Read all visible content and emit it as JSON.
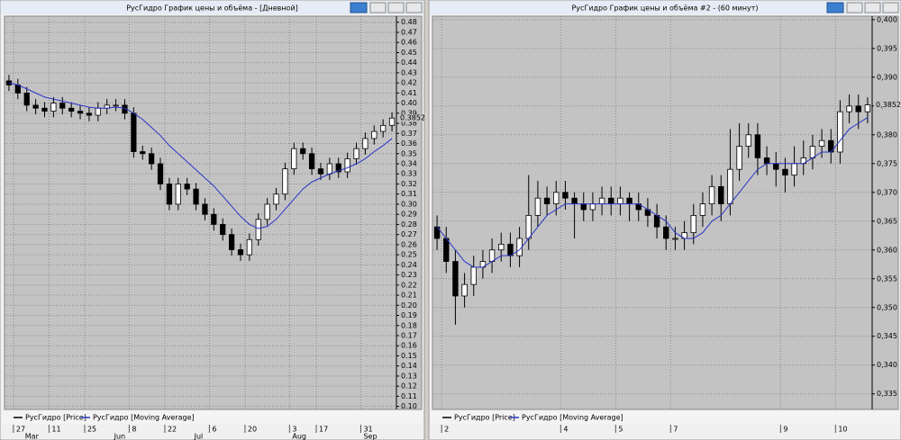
{
  "chart_data": [
    {
      "type": "candlestick",
      "title": "РусГидро График цены и объёма - [Дневной]",
      "categories": [
        null,
        "27",
        null,
        null,
        null,
        "11",
        null,
        null,
        null,
        "25",
        null,
        null,
        null,
        null,
        "8",
        null,
        null,
        null,
        "22",
        null,
        null,
        null,
        null,
        "6",
        null,
        null,
        null,
        "20",
        null,
        null,
        null,
        null,
        "3",
        null,
        null,
        "17",
        null,
        null,
        null,
        null,
        "31",
        null,
        null,
        null
      ],
      "category_months": [
        null,
        null,
        "Mar",
        null,
        null,
        null,
        null,
        null,
        null,
        null,
        null,
        null,
        "Jun",
        null,
        null,
        null,
        null,
        null,
        null,
        null,
        null,
        "Jul",
        null,
        null,
        null,
        null,
        null,
        null,
        null,
        null,
        null,
        null,
        "Aug",
        null,
        null,
        null,
        null,
        null,
        null,
        null,
        "Sep",
        null,
        null,
        null
      ],
      "series": [
        {
          "name": "РусГидро [Price]",
          "color": "#000000",
          "ohlc": [
            [
              0.422,
              0.428,
              0.412,
              0.418
            ],
            [
              0.418,
              0.424,
              0.404,
              0.41
            ],
            [
              0.41,
              0.416,
              0.392,
              0.398
            ],
            [
              0.398,
              0.404,
              0.389,
              0.395
            ],
            [
              0.395,
              0.401,
              0.386,
              0.392
            ],
            [
              0.392,
              0.406,
              0.386,
              0.4
            ],
            [
              0.4,
              0.406,
              0.389,
              0.395
            ],
            [
              0.395,
              0.401,
              0.386,
              0.392
            ],
            [
              0.392,
              0.398,
              0.384,
              0.39
            ],
            [
              0.39,
              0.396,
              0.382,
              0.388
            ],
            [
              0.388,
              0.401,
              0.382,
              0.395
            ],
            [
              0.395,
              0.404,
              0.389,
              0.398
            ],
            [
              0.398,
              0.404,
              0.392,
              0.398
            ],
            [
              0.398,
              0.404,
              0.384,
              0.39
            ],
            [
              0.39,
              0.396,
              0.346,
              0.352
            ],
            [
              0.352,
              0.358,
              0.344,
              0.35
            ],
            [
              0.35,
              0.356,
              0.334,
              0.34
            ],
            [
              0.34,
              0.346,
              0.314,
              0.32
            ],
            [
              0.32,
              0.326,
              0.294,
              0.3
            ],
            [
              0.3,
              0.326,
              0.294,
              0.32
            ],
            [
              0.32,
              0.326,
              0.309,
              0.315
            ],
            [
              0.315,
              0.321,
              0.294,
              0.3
            ],
            [
              0.3,
              0.306,
              0.284,
              0.29
            ],
            [
              0.29,
              0.296,
              0.274,
              0.28
            ],
            [
              0.28,
              0.286,
              0.264,
              0.27
            ],
            [
              0.27,
              0.276,
              0.249,
              0.255
            ],
            [
              0.255,
              0.261,
              0.244,
              0.25
            ],
            [
              0.25,
              0.271,
              0.244,
              0.265
            ],
            [
              0.265,
              0.291,
              0.259,
              0.285
            ],
            [
              0.285,
              0.306,
              0.279,
              0.3
            ],
            [
              0.3,
              0.316,
              0.294,
              0.31
            ],
            [
              0.31,
              0.341,
              0.304,
              0.335
            ],
            [
              0.335,
              0.361,
              0.329,
              0.355
            ],
            [
              0.355,
              0.361,
              0.344,
              0.35
            ],
            [
              0.35,
              0.356,
              0.329,
              0.335
            ],
            [
              0.335,
              0.341,
              0.324,
              0.33
            ],
            [
              0.33,
              0.346,
              0.324,
              0.34
            ],
            [
              0.34,
              0.346,
              0.326,
              0.332
            ],
            [
              0.332,
              0.351,
              0.326,
              0.345
            ],
            [
              0.345,
              0.361,
              0.339,
              0.355
            ],
            [
              0.355,
              0.371,
              0.349,
              0.365
            ],
            [
              0.365,
              0.378,
              0.359,
              0.372
            ],
            [
              0.372,
              0.384,
              0.366,
              0.378
            ],
            [
              0.378,
              0.391,
              0.372,
              0.3852
            ]
          ]
        },
        {
          "name": "РусГидро [Moving Average]",
          "color": "#2a35c8",
          "values": [
            0.42,
            0.418,
            0.414,
            0.41,
            0.406,
            0.404,
            0.402,
            0.4,
            0.398,
            0.396,
            0.395,
            0.395,
            0.396,
            0.395,
            0.39,
            0.384,
            0.376,
            0.368,
            0.358,
            0.35,
            0.342,
            0.334,
            0.326,
            0.318,
            0.308,
            0.298,
            0.288,
            0.28,
            0.276,
            0.278,
            0.285,
            0.295,
            0.305,
            0.315,
            0.322,
            0.326,
            0.33,
            0.333,
            0.336,
            0.34,
            0.345,
            0.352,
            0.358,
            0.365
          ]
        }
      ],
      "ylim": [
        0.097,
        0.486
      ],
      "yticks": [
        {
          "value": 0.1,
          "label": "0.10"
        },
        {
          "value": 0.11,
          "label": "0.11"
        },
        {
          "value": 0.12,
          "label": "0.12"
        },
        {
          "value": 0.13,
          "label": "0.13"
        },
        {
          "value": 0.14,
          "label": "0.14"
        },
        {
          "value": 0.15,
          "label": "0.15"
        },
        {
          "value": 0.16,
          "label": "0.16"
        },
        {
          "value": 0.17,
          "label": "0.17"
        },
        {
          "value": 0.18,
          "label": "0.18"
        },
        {
          "value": 0.19,
          "label": "0.19"
        },
        {
          "value": 0.2,
          "label": "0.20"
        },
        {
          "value": 0.21,
          "label": "0.21"
        },
        {
          "value": 0.22,
          "label": "0.22"
        },
        {
          "value": 0.23,
          "label": "0.23"
        },
        {
          "value": 0.24,
          "label": "0.24"
        },
        {
          "value": 0.25,
          "label": "0.25"
        },
        {
          "value": 0.26,
          "label": "0.26"
        },
        {
          "value": 0.27,
          "label": "0.27"
        },
        {
          "value": 0.28,
          "label": "0.28"
        },
        {
          "value": 0.29,
          "label": "0.29"
        },
        {
          "value": 0.3,
          "label": "0.30"
        },
        {
          "value": 0.31,
          "label": "0.31"
        },
        {
          "value": 0.32,
          "label": "0.32"
        },
        {
          "value": 0.33,
          "label": "0.33"
        },
        {
          "value": 0.34,
          "label": "0.34"
        },
        {
          "value": 0.35,
          "label": "0.35"
        },
        {
          "value": 0.36,
          "label": "0.36"
        },
        {
          "value": 0.37,
          "label": "0.37"
        },
        {
          "value": 0.38,
          "label": "0.38"
        },
        {
          "value": 0.39,
          "label": "0.39"
        },
        {
          "value": 0.4,
          "label": "0.40"
        },
        {
          "value": 0.41,
          "label": "0.41"
        },
        {
          "value": 0.42,
          "label": "0.42"
        },
        {
          "value": 0.43,
          "label": "0.43"
        },
        {
          "value": 0.44,
          "label": "0.44"
        },
        {
          "value": 0.45,
          "label": "0.45"
        },
        {
          "value": 0.46,
          "label": "0.46"
        },
        {
          "value": 0.47,
          "label": "0.47"
        },
        {
          "value": 0.48,
          "label": "0.48"
        }
      ],
      "last_price": {
        "value": 0.3852,
        "label": "0.3852"
      },
      "grid": true
    },
    {
      "type": "candlestick",
      "title": "РусГидро График цены и объёма #2 - (60 минут)",
      "categories": [
        null,
        "2",
        null,
        null,
        null,
        null,
        null,
        null,
        null,
        null,
        null,
        null,
        null,
        null,
        "4",
        null,
        null,
        null,
        null,
        null,
        "5",
        null,
        null,
        null,
        null,
        null,
        "7",
        null,
        null,
        null,
        null,
        null,
        null,
        null,
        null,
        null,
        null,
        null,
        "9",
        null,
        null,
        null,
        null,
        null,
        "10",
        null,
        null,
        null
      ],
      "series": [
        {
          "name": "РусГидро [Price]",
          "color": "#000000",
          "ohlc": [
            [
              0.364,
              0.366,
              0.36,
              0.362
            ],
            [
              0.362,
              0.364,
              0.356,
              0.358
            ],
            [
              0.358,
              0.36,
              0.347,
              0.352
            ],
            [
              0.352,
              0.356,
              0.35,
              0.354
            ],
            [
              0.354,
              0.359,
              0.352,
              0.357
            ],
            [
              0.357,
              0.36,
              0.355,
              0.358
            ],
            [
              0.358,
              0.362,
              0.356,
              0.36
            ],
            [
              0.36,
              0.363,
              0.358,
              0.361
            ],
            [
              0.361,
              0.363,
              0.357,
              0.359
            ],
            [
              0.359,
              0.364,
              0.357,
              0.362
            ],
            [
              0.362,
              0.373,
              0.36,
              0.366
            ],
            [
              0.366,
              0.372,
              0.364,
              0.369
            ],
            [
              0.369,
              0.371,
              0.366,
              0.368
            ],
            [
              0.368,
              0.372,
              0.366,
              0.37
            ],
            [
              0.37,
              0.372,
              0.367,
              0.369
            ],
            [
              0.369,
              0.37,
              0.362,
              0.368
            ],
            [
              0.368,
              0.37,
              0.365,
              0.367
            ],
            [
              0.367,
              0.37,
              0.365,
              0.368
            ],
            [
              0.368,
              0.371,
              0.366,
              0.369
            ],
            [
              0.369,
              0.371,
              0.366,
              0.368
            ],
            [
              0.368,
              0.371,
              0.366,
              0.369
            ],
            [
              0.369,
              0.37,
              0.365,
              0.368
            ],
            [
              0.368,
              0.37,
              0.365,
              0.367
            ],
            [
              0.367,
              0.369,
              0.364,
              0.366
            ],
            [
              0.366,
              0.368,
              0.362,
              0.364
            ],
            [
              0.364,
              0.366,
              0.36,
              0.362
            ],
            [
              0.362,
              0.364,
              0.36,
              0.362
            ],
            [
              0.362,
              0.365,
              0.36,
              0.363
            ],
            [
              0.363,
              0.368,
              0.361,
              0.366
            ],
            [
              0.366,
              0.37,
              0.364,
              0.368
            ],
            [
              0.368,
              0.373,
              0.366,
              0.371
            ],
            [
              0.371,
              0.373,
              0.365,
              0.368
            ],
            [
              0.368,
              0.381,
              0.366,
              0.374
            ],
            [
              0.374,
              0.382,
              0.372,
              0.378
            ],
            [
              0.378,
              0.382,
              0.376,
              0.38
            ],
            [
              0.38,
              0.382,
              0.373,
              0.376
            ],
            [
              0.376,
              0.378,
              0.373,
              0.375
            ],
            [
              0.375,
              0.377,
              0.371,
              0.374
            ],
            [
              0.374,
              0.376,
              0.37,
              0.373
            ],
            [
              0.373,
              0.378,
              0.371,
              0.375
            ],
            [
              0.375,
              0.379,
              0.373,
              0.376
            ],
            [
              0.376,
              0.38,
              0.374,
              0.378
            ],
            [
              0.378,
              0.381,
              0.376,
              0.379
            ],
            [
              0.379,
              0.381,
              0.375,
              0.377
            ],
            [
              0.377,
              0.386,
              0.375,
              0.384
            ],
            [
              0.384,
              0.387,
              0.382,
              0.385
            ],
            [
              0.385,
              0.387,
              0.381,
              0.384
            ],
            [
              0.384,
              0.3865,
              0.382,
              0.3852
            ]
          ]
        },
        {
          "name": "РусГидро [Moving Average]",
          "color": "#2a35c8",
          "values": [
            0.364,
            0.362,
            0.36,
            0.358,
            0.357,
            0.357,
            0.358,
            0.359,
            0.359,
            0.36,
            0.362,
            0.364,
            0.366,
            0.367,
            0.368,
            0.368,
            0.368,
            0.368,
            0.368,
            0.368,
            0.368,
            0.368,
            0.368,
            0.367,
            0.366,
            0.365,
            0.363,
            0.362,
            0.362,
            0.363,
            0.365,
            0.366,
            0.368,
            0.37,
            0.372,
            0.374,
            0.375,
            0.375,
            0.375,
            0.375,
            0.375,
            0.376,
            0.377,
            0.377,
            0.379,
            0.381,
            0.382,
            0.383
          ]
        }
      ],
      "ylim": [
        0.3323,
        0.4006
      ],
      "yticks": [
        {
          "value": 0.335,
          "label": "0,335"
        },
        {
          "value": 0.34,
          "label": "0,340"
        },
        {
          "value": 0.345,
          "label": "0,345"
        },
        {
          "value": 0.35,
          "label": "0,350"
        },
        {
          "value": 0.355,
          "label": "0,355"
        },
        {
          "value": 0.36,
          "label": "0,360"
        },
        {
          "value": 0.365,
          "label": "0,365"
        },
        {
          "value": 0.37,
          "label": "0,370"
        },
        {
          "value": 0.375,
          "label": "0,375"
        },
        {
          "value": 0.38,
          "label": "0,380"
        },
        {
          "value": 0.385,
          "label": "0,385"
        },
        {
          "value": 0.39,
          "label": "0,390"
        },
        {
          "value": 0.395,
          "label": "0,395"
        },
        {
          "value": 0.4,
          "label": "0,400"
        }
      ],
      "last_price": {
        "value": 0.3852,
        "label": "0,3852"
      },
      "grid": true
    }
  ]
}
